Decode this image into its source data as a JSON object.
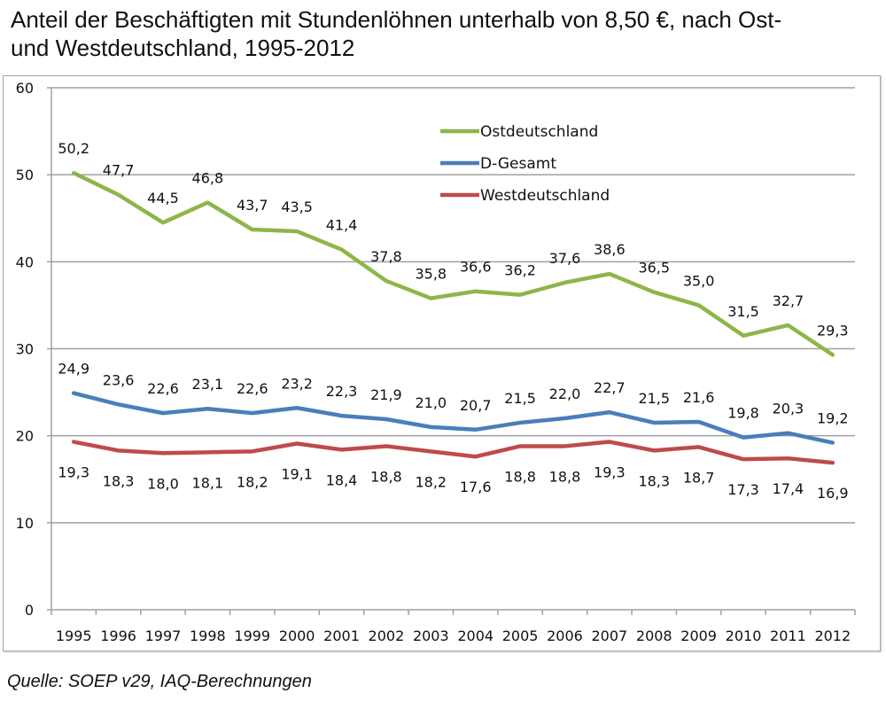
{
  "title": "Anteil der Beschäftigten mit Stundenlöhnen unterhalb von 8,50 €, nach Ost- und Westdeutschland, 1995-2012",
  "title_lines": [
    "Anteil der Beschäftigten mit Stundenlöhnen unterhalb von 8,50 €, nach Ost-",
    "und Westdeutschland, 1995-2012"
  ],
  "source": "Quelle: SOEP v29, IAQ-Berechnungen",
  "chart_data": {
    "type": "line",
    "title": "Anteil der Beschäftigten mit Stundenlöhnen unterhalb von 8,50 €, nach Ost- und Westdeutschland, 1995-2012",
    "xlabel": "",
    "ylabel": "",
    "categories": [
      "1995",
      "1996",
      "1997",
      "1998",
      "1999",
      "2000",
      "2001",
      "2002",
      "2003",
      "2004",
      "2005",
      "2006",
      "2007",
      "2008",
      "2009",
      "2010",
      "2011",
      "2012"
    ],
    "ylim": [
      0,
      60
    ],
    "yticks": [
      0,
      10,
      20,
      30,
      40,
      50,
      60
    ],
    "grid": true,
    "legend_position": "top-center",
    "series": [
      {
        "name": "Ostdeutschland",
        "color": "#8db64a",
        "label_position": "above",
        "values": [
          50.2,
          47.7,
          44.5,
          46.8,
          43.7,
          43.5,
          41.4,
          37.8,
          35.8,
          36.6,
          36.2,
          37.6,
          38.6,
          36.5,
          35.0,
          31.5,
          32.7,
          29.3
        ],
        "labels": [
          "50,2",
          "47,7",
          "44,5",
          "46,8",
          "43,7",
          "43,5",
          "41,4",
          "37,8",
          "35,8",
          "36,6",
          "36,2",
          "37,6",
          "38,6",
          "36,5",
          "35,0",
          "31,5",
          "32,7",
          "29,3"
        ]
      },
      {
        "name": "D-Gesamt",
        "color": "#4a7ebb",
        "label_position": "above",
        "values": [
          24.9,
          23.6,
          22.6,
          23.1,
          22.6,
          23.2,
          22.3,
          21.9,
          21.0,
          20.7,
          21.5,
          22.0,
          22.7,
          21.5,
          21.6,
          19.8,
          20.3,
          19.2
        ],
        "labels": [
          "24,9",
          "23,6",
          "22,6",
          "23,1",
          "22,6",
          "23,2",
          "22,3",
          "21,9",
          "21,0",
          "20,7",
          "21,5",
          "22,0",
          "22,7",
          "21,5",
          "21,6",
          "19,8",
          "20,3",
          "19,2"
        ]
      },
      {
        "name": "Westdeutschland",
        "color": "#be4b48",
        "label_position": "below",
        "values": [
          19.3,
          18.3,
          18.0,
          18.1,
          18.2,
          19.1,
          18.4,
          18.8,
          18.2,
          17.6,
          18.8,
          18.8,
          19.3,
          18.3,
          18.7,
          17.3,
          17.4,
          16.9
        ],
        "labels": [
          "19,3",
          "18,3",
          "18,0",
          "18,1",
          "18,2",
          "19,1",
          "18,4",
          "18,8",
          "18,2",
          "17,6",
          "18,8",
          "18,8",
          "19,3",
          "18,3",
          "18,7",
          "17,3",
          "17,4",
          "16,9"
        ]
      }
    ]
  }
}
